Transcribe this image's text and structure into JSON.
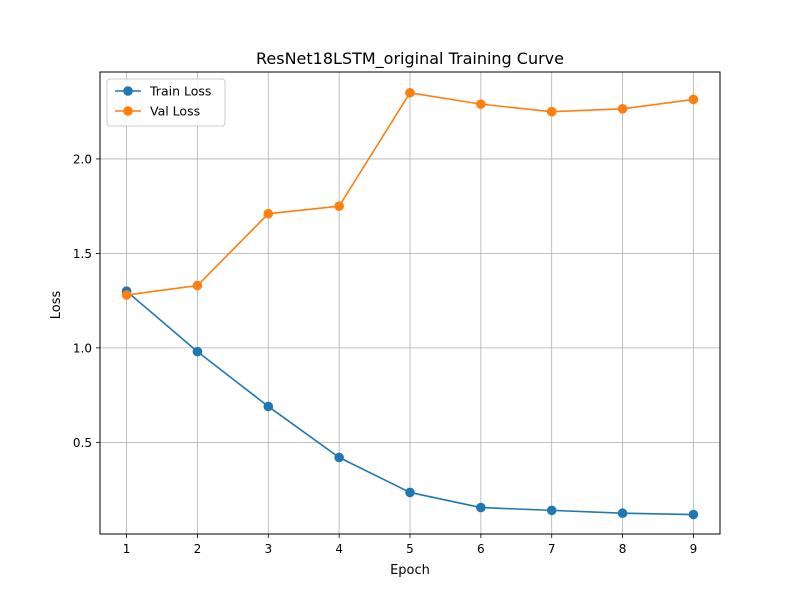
{
  "chart_data": {
    "type": "line",
    "title": "ResNet18LSTM_original Training Curve",
    "xlabel": "Epoch",
    "ylabel": "Loss",
    "x": [
      1,
      2,
      3,
      4,
      5,
      6,
      7,
      8,
      9
    ],
    "xlim": [
      0.625,
      9.375
    ],
    "ylim": [
      0.015,
      2.46
    ],
    "yticks": [
      0.5,
      1.0,
      1.5,
      2.0
    ],
    "ytick_labels": [
      "0.5",
      "1.0",
      "1.5",
      "2.0"
    ],
    "xticks": [
      1,
      2,
      3,
      4,
      5,
      6,
      7,
      8,
      9
    ],
    "xtick_labels": [
      "1",
      "2",
      "3",
      "4",
      "5",
      "6",
      "7",
      "8",
      "9"
    ],
    "grid": true,
    "legend_position": "upper-left",
    "series": [
      {
        "name": "Train Loss",
        "color": "#1f77b4",
        "values": [
          1.3,
          0.98,
          0.69,
          0.42,
          0.235,
          0.155,
          0.14,
          0.125,
          0.118
        ]
      },
      {
        "name": "Val Loss",
        "color": "#ff7f0e",
        "values": [
          1.28,
          1.33,
          1.71,
          1.75,
          2.35,
          2.29,
          2.25,
          2.265,
          2.315
        ]
      }
    ]
  }
}
